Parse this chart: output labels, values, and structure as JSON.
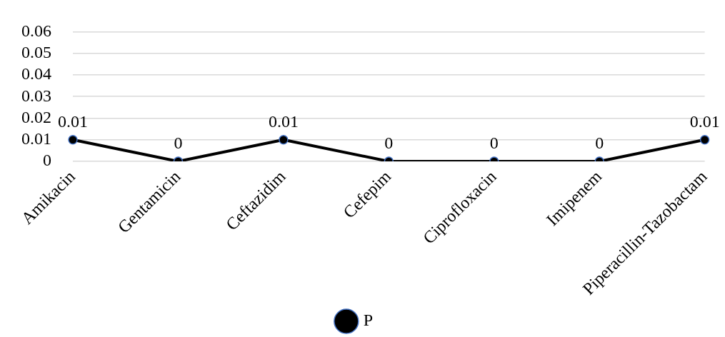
{
  "chart_data": {
    "type": "line",
    "categories": [
      "Amikacin",
      "Gentamicin",
      "Ceftazidim",
      "Cefepim",
      "Ciprofloxacin",
      "Imipenem",
      "Piperacillin-Tazobactam"
    ],
    "series": [
      {
        "name": "P",
        "color": "#000000",
        "values": [
          0.01,
          0,
          0.01,
          0,
          0,
          0,
          0.01
        ]
      }
    ],
    "ylim": [
      0,
      0.06
    ],
    "yticks": [
      0,
      0.01,
      0.02,
      0.03,
      0.04,
      0.05,
      0.06
    ],
    "grid": "y",
    "legend": "bottom",
    "marker": "circle",
    "line_style": "solid",
    "data_labels": true
  }
}
